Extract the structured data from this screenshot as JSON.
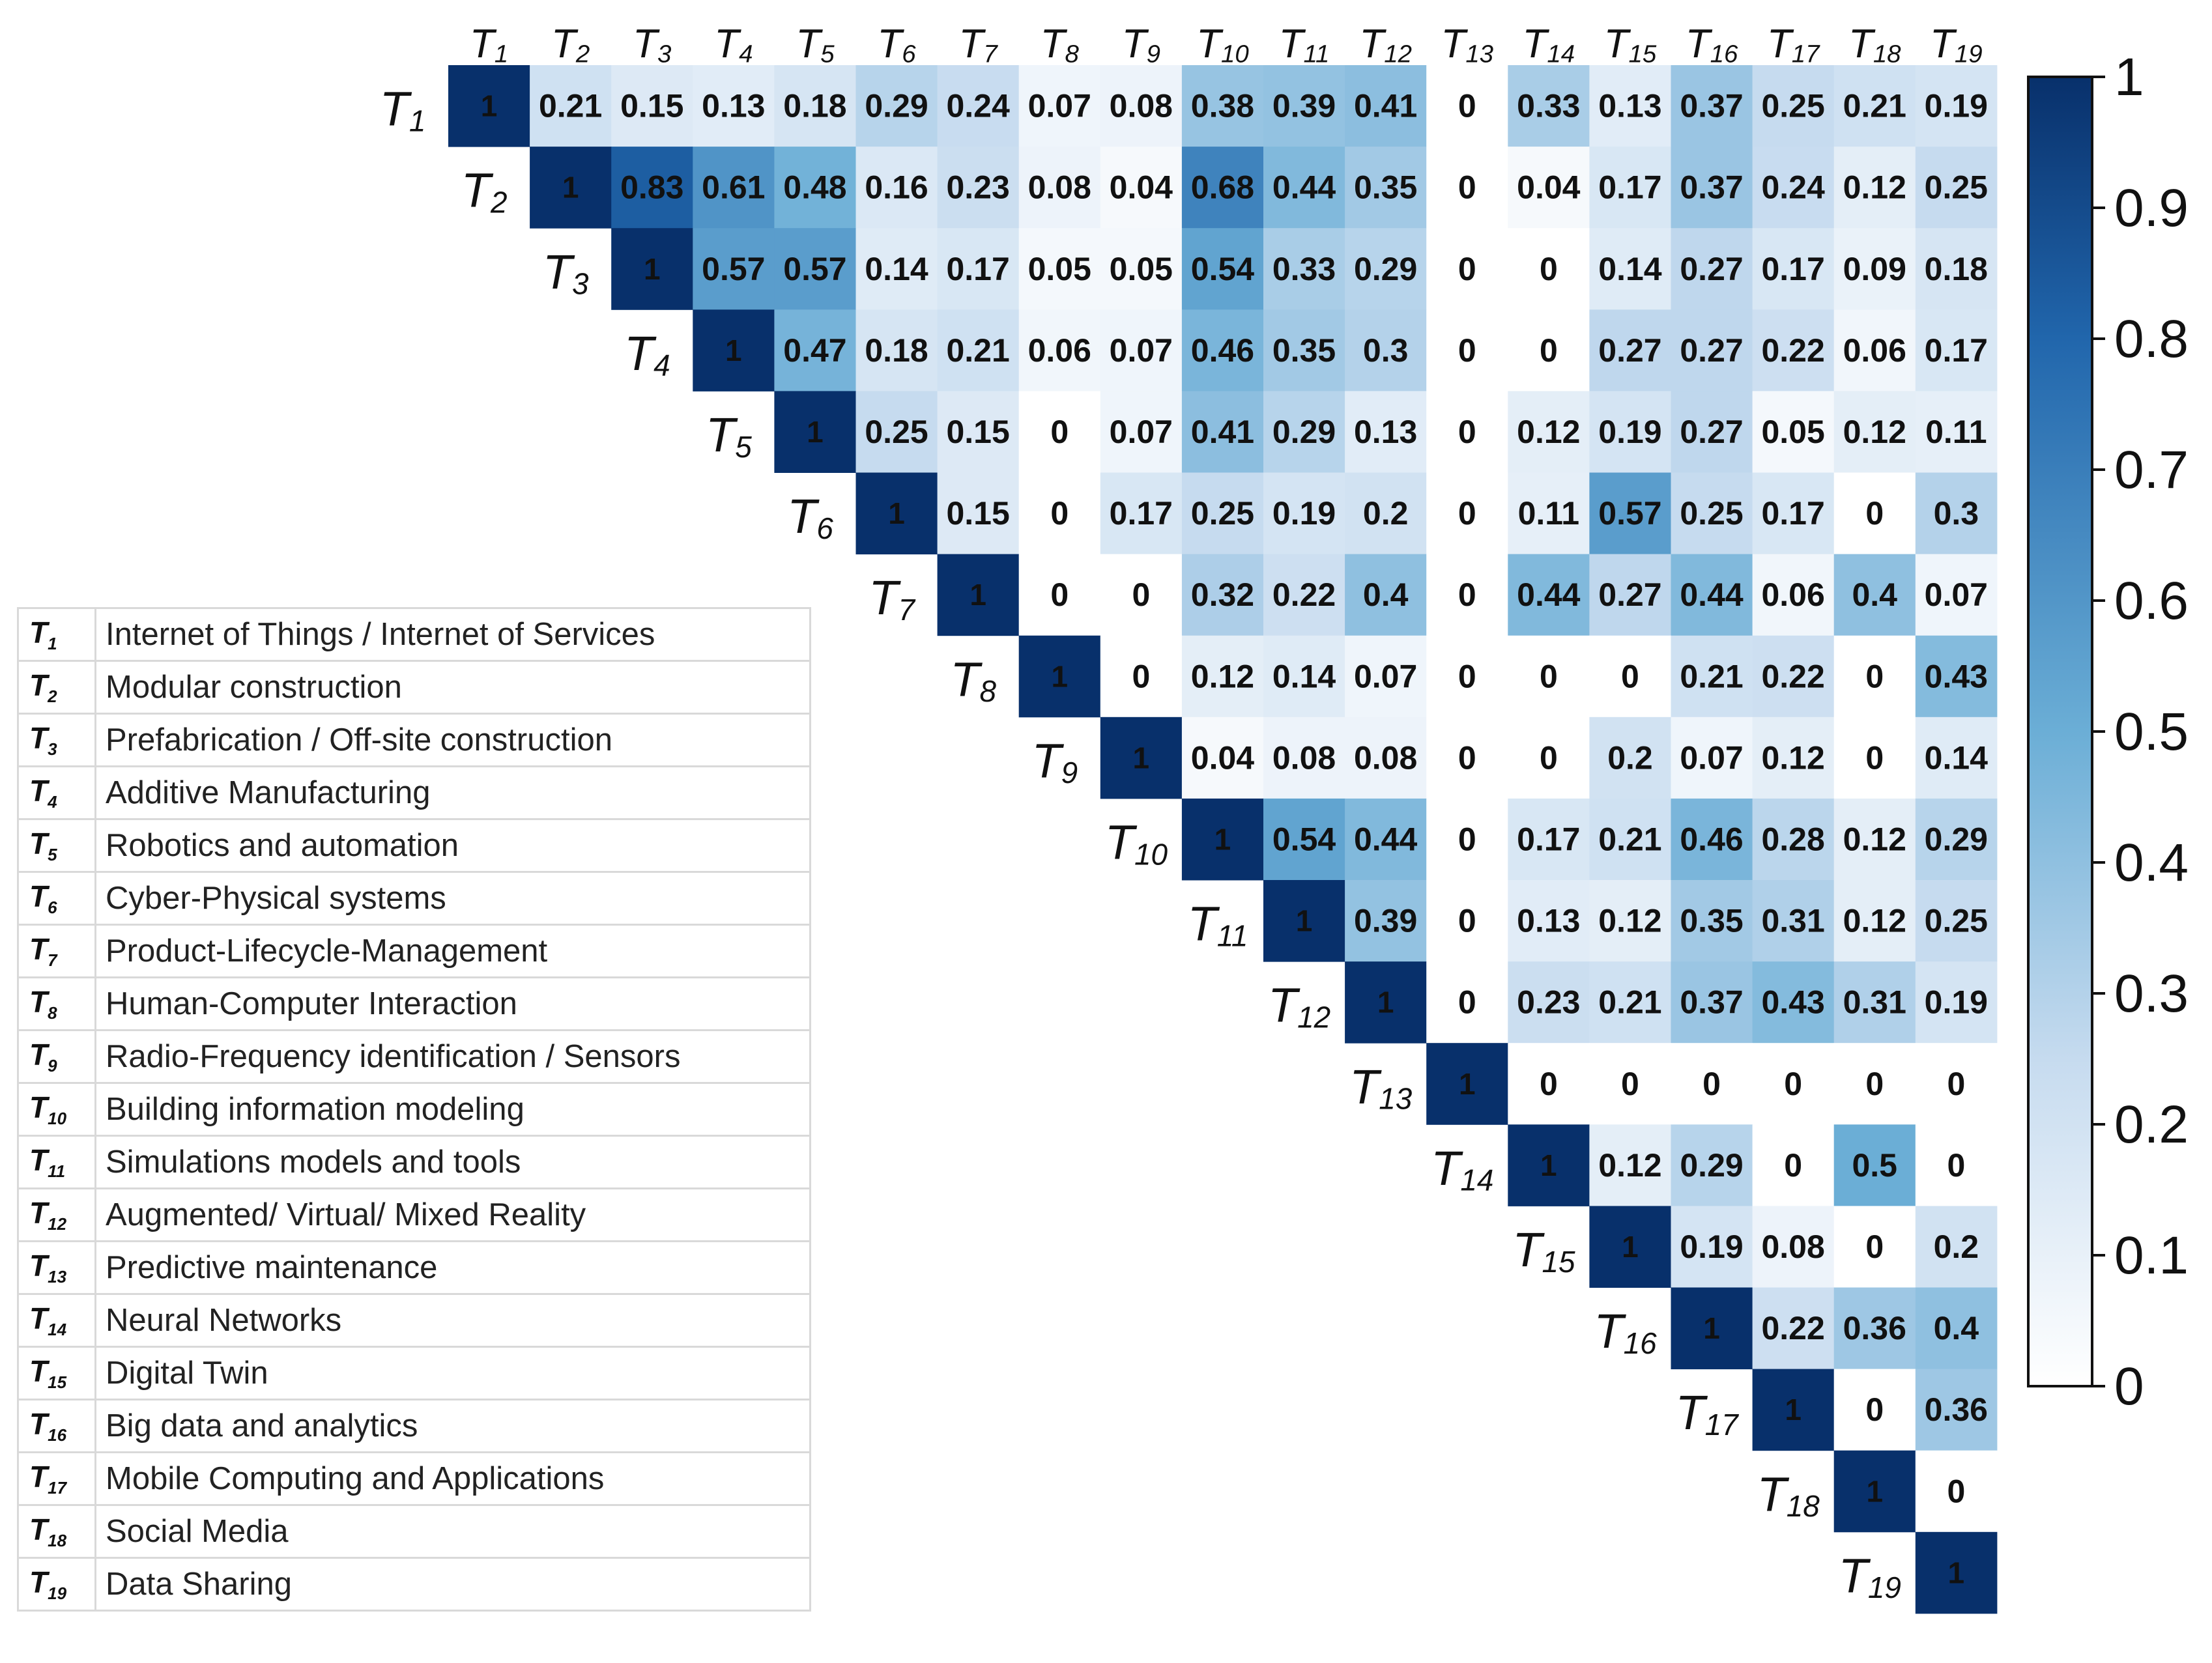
{
  "chart_data": {
    "type": "heatmap",
    "subtype": "upper-triangular correlation matrix",
    "labels": [
      "T1",
      "T2",
      "T3",
      "T4",
      "T5",
      "T6",
      "T7",
      "T8",
      "T9",
      "T10",
      "T11",
      "T12",
      "T13",
      "T14",
      "T15",
      "T16",
      "T17",
      "T18",
      "T19"
    ],
    "rows": [
      [
        1,
        0.21,
        0.15,
        0.13,
        0.18,
        0.29,
        0.24,
        0.07,
        0.08,
        0.38,
        0.39,
        0.41,
        0,
        0.33,
        0.13,
        0.37,
        0.25,
        0.21,
        0.19
      ],
      [
        1,
        0.83,
        0.61,
        0.48,
        0.16,
        0.23,
        0.08,
        0.04,
        0.68,
        0.44,
        0.35,
        0,
        0.04,
        0.17,
        0.37,
        0.24,
        0.12,
        0.25
      ],
      [
        1,
        0.57,
        0.57,
        0.14,
        0.17,
        0.05,
        0.05,
        0.54,
        0.33,
        0.29,
        0,
        0,
        0.14,
        0.27,
        0.17,
        0.09,
        0.18
      ],
      [
        1,
        0.47,
        0.18,
        0.21,
        0.06,
        0.07,
        0.46,
        0.35,
        0.3,
        0,
        0,
        0.27,
        0.27,
        0.22,
        0.06,
        0.17
      ],
      [
        1,
        0.25,
        0.15,
        0,
        0.07,
        0.41,
        0.29,
        0.13,
        0,
        0.12,
        0.19,
        0.27,
        0.05,
        0.12,
        0.11
      ],
      [
        1,
        0.15,
        0,
        0.17,
        0.25,
        0.19,
        0.2,
        0,
        0.11,
        0.57,
        0.25,
        0.17,
        0,
        0.3
      ],
      [
        1,
        0,
        0,
        0.32,
        0.22,
        0.4,
        0,
        0.44,
        0.27,
        0.44,
        0.06,
        0.4,
        0.07
      ],
      [
        1,
        0,
        0.12,
        0.14,
        0.07,
        0,
        0,
        0,
        0.21,
        0.22,
        0,
        0.43
      ],
      [
        1,
        0.04,
        0.08,
        0.08,
        0,
        0,
        0.2,
        0.07,
        0.12,
        0,
        0.14
      ],
      [
        1,
        0.54,
        0.44,
        0,
        0.17,
        0.21,
        0.46,
        0.28,
        0.12,
        0.29
      ],
      [
        1,
        0.39,
        0,
        0.13,
        0.12,
        0.35,
        0.31,
        0.12,
        0.25
      ],
      [
        1,
        0,
        0.23,
        0.21,
        0.37,
        0.43,
        0.31,
        0.19
      ],
      [
        1,
        0,
        0,
        0,
        0,
        0,
        0
      ],
      [
        1,
        0.12,
        0.29,
        0,
        0.5,
        0
      ],
      [
        1,
        0.19,
        0.08,
        0,
        0.2
      ],
      [
        1,
        0.22,
        0.36,
        0.4
      ],
      [
        1,
        0,
        0.36
      ],
      [
        1,
        0
      ],
      [
        1
      ]
    ],
    "colorbar": {
      "range": [
        0,
        1
      ],
      "ticks": [
        "0",
        "0.1",
        "0.2",
        "0.3",
        "0.4",
        "0.5",
        "0.6",
        "0.7",
        "0.8",
        "0.9",
        "1"
      ],
      "colormap": "white-to-dark-blue"
    },
    "colors": {
      "low": "#ffffff",
      "mid": "#4393c3",
      "high": "#08306b"
    }
  },
  "legend": [
    {
      "code": "T",
      "sub": "1",
      "name": "Internet of Things / Internet of Services"
    },
    {
      "code": "T",
      "sub": "2",
      "name": "Modular construction"
    },
    {
      "code": "T",
      "sub": "3",
      "name": "Prefabrication / Off-site construction"
    },
    {
      "code": "T",
      "sub": "4",
      "name": "Additive Manufacturing"
    },
    {
      "code": "T",
      "sub": "5",
      "name": "Robotics and automation"
    },
    {
      "code": "T",
      "sub": "6",
      "name": "Cyber-Physical systems"
    },
    {
      "code": "T",
      "sub": "7",
      "name": "Product-Lifecycle-Management"
    },
    {
      "code": "T",
      "sub": "8",
      "name": "Human-Computer Interaction"
    },
    {
      "code": "T",
      "sub": "9",
      "name": "Radio-Frequency identification / Sensors"
    },
    {
      "code": "T",
      "sub": "10",
      "name": "Building information modeling"
    },
    {
      "code": "T",
      "sub": "11",
      "name": "Simulations models and tools"
    },
    {
      "code": "T",
      "sub": "12",
      "name": "Augmented/ Virtual/ Mixed Reality"
    },
    {
      "code": "T",
      "sub": "13",
      "name": "Predictive maintenance"
    },
    {
      "code": "T",
      "sub": "14",
      "name": "Neural Networks"
    },
    {
      "code": "T",
      "sub": "15",
      "name": "Digital Twin"
    },
    {
      "code": "T",
      "sub": "16",
      "name": "Big data and analytics"
    },
    {
      "code": "T",
      "sub": "17",
      "name": "Mobile Computing and Applications"
    },
    {
      "code": "T",
      "sub": "18",
      "name": "Social Media"
    },
    {
      "code": "T",
      "sub": "19",
      "name": "Data Sharing"
    }
  ]
}
